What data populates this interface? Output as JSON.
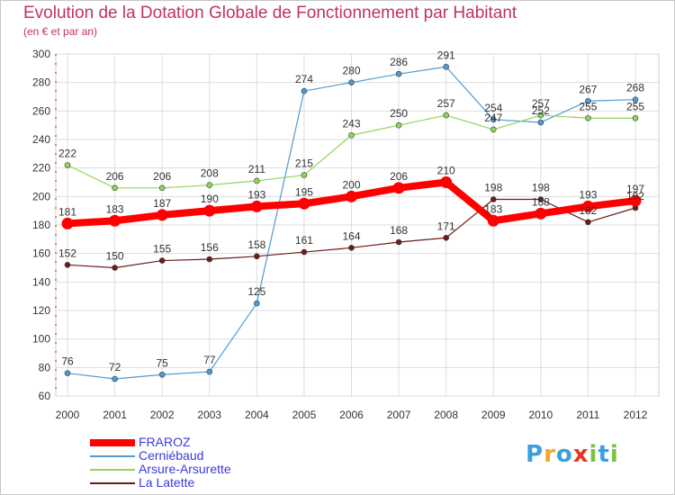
{
  "title": "Evolution de la Dotation Globale de Fonctionnement par Habitant",
  "subtitle": "(en € et par an)",
  "logo": {
    "letters": [
      "P",
      "r",
      "o",
      "x",
      "i",
      "t",
      "i"
    ],
    "colors": [
      "#3aa0e0",
      "#f5a623",
      "#3aa0e0",
      "#e8341c",
      "#7bc142",
      "#3aa0e0",
      "#7bc142"
    ]
  },
  "chart_data": {
    "type": "line",
    "title": "Evolution de la Dotation Globale de Fonctionnement par Habitant",
    "ylabel": "(en € et par an)",
    "xlabel": "",
    "ylim": [
      60,
      300
    ],
    "yticks": [
      60,
      80,
      100,
      120,
      140,
      160,
      180,
      200,
      220,
      240,
      260,
      280,
      300
    ],
    "categories": [
      "2000",
      "2001",
      "2002",
      "2003",
      "2004",
      "2005",
      "2006",
      "2007",
      "2008",
      "2009",
      "2010",
      "2011",
      "2012"
    ],
    "grid": true,
    "legend_position": "bottom-left",
    "series": [
      {
        "name": "FRAROZ",
        "color": "#ff0000",
        "values": [
          181,
          183,
          187,
          190,
          193,
          195,
          200,
          206,
          210,
          183,
          188,
          193,
          197
        ]
      },
      {
        "name": "Cerniébaud",
        "color": "#4f9ad1",
        "values": [
          76,
          72,
          75,
          77,
          125,
          274,
          280,
          286,
          291,
          254,
          252,
          267,
          268
        ]
      },
      {
        "name": "Arsure-Arsurette",
        "color": "#8cd65a",
        "values": [
          222,
          206,
          206,
          208,
          211,
          215,
          243,
          250,
          257,
          247,
          257,
          255,
          255
        ]
      },
      {
        "name": "La Latette",
        "color": "#6b1c1c",
        "values": [
          152,
          150,
          155,
          156,
          158,
          161,
          164,
          168,
          171,
          198,
          198,
          182,
          192
        ]
      }
    ]
  }
}
